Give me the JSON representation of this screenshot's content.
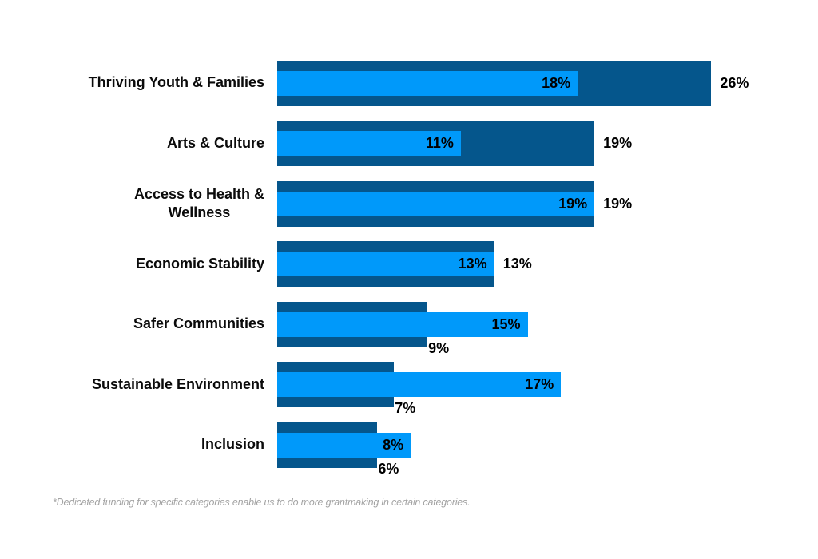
{
  "chart_data": {
    "type": "bar",
    "orientation": "horizontal",
    "title": "",
    "xlabel": "",
    "ylabel": "",
    "xlim": [
      0,
      26
    ],
    "grid": false,
    "legend": "none",
    "categories": [
      "Thriving Youth & Families",
      "Arts & Culture",
      "Access to Health &\nWellness",
      "Economic Stability",
      "Safer Communities",
      "Sustainable Environment",
      "Inclusion"
    ],
    "series": [
      {
        "name": "dark-blue-series",
        "color": "#05568C",
        "values": [
          26,
          19,
          19,
          13,
          9,
          7,
          6
        ],
        "labels": [
          "26%",
          "19%",
          "19%",
          "13%",
          "9%",
          "7%",
          "6%"
        ]
      },
      {
        "name": "light-blue-series",
        "color": "#0099FA",
        "values": [
          18,
          11,
          19,
          13,
          15,
          17,
          8
        ],
        "labels": [
          "18%",
          "11%",
          "19%",
          "13%",
          "15%",
          "17%",
          "8%"
        ]
      }
    ],
    "value_suffix": "%"
  },
  "footnote": {
    "text": "*Dedicated funding for specific categories enable us to do more grantmaking in certain categories."
  }
}
